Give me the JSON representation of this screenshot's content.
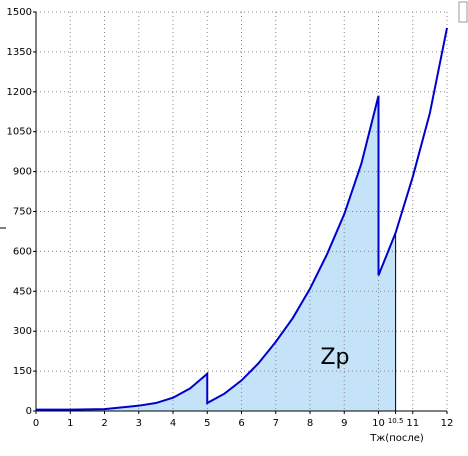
{
  "chart_data": {
    "type": "line",
    "x_label": "Тж(после)",
    "annotation": "Zp",
    "x": [
      0,
      1,
      2,
      3,
      3.5,
      4,
      4.5,
      5,
      5,
      5.5,
      6,
      6.5,
      7,
      7.5,
      8,
      8.5,
      9,
      9.5,
      10,
      10,
      10.5,
      11,
      11.5,
      12
    ],
    "series": [
      {
        "color": "#0000cc",
        "values": [
          5,
          5,
          7,
          20,
          30,
          50,
          85,
          140,
          30,
          65,
          115,
          180,
          260,
          350,
          460,
          590,
          740,
          930,
          1185,
          510,
          670,
          880,
          1120,
          1440
        ]
      }
    ],
    "fill_color": "#c5e3f8",
    "fill_xlim": [
      0,
      10.5
    ],
    "xlim": [
      0,
      12
    ],
    "xticks": [
      0,
      1,
      2,
      3,
      4,
      5,
      6,
      7,
      8,
      9,
      10,
      10.5,
      11,
      12
    ],
    "ylim": [
      0,
      1500
    ],
    "yticks": [
      0,
      150,
      300,
      450,
      600,
      750,
      900,
      1050,
      1200,
      1350,
      1500
    ],
    "grid": true
  }
}
